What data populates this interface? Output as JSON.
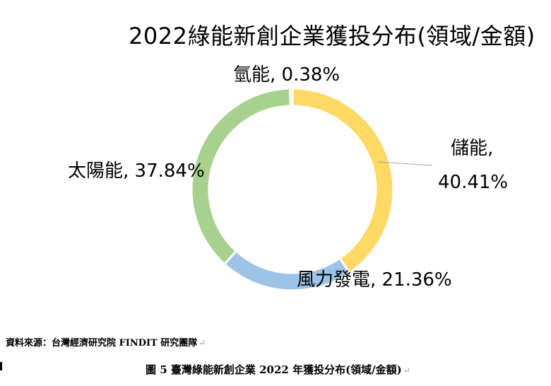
{
  "chart_data": {
    "type": "pie",
    "title": "2022綠能新創企業獲投分布(領域/金額)",
    "donut": true,
    "start_angle_deg": 0,
    "direction": "clockwise",
    "slices": [
      {
        "name": "儲能",
        "value": 40.41,
        "label": "儲能,",
        "value_label": "40.41%",
        "color": "#ffd966"
      },
      {
        "name": "風力發電",
        "value": 21.36,
        "label": "風力發電, 21.36%",
        "color": "#9dc3e6"
      },
      {
        "name": "太陽能",
        "value": 37.84,
        "label": "太陽能, 37.84%",
        "color": "#a9d18e"
      },
      {
        "name": "氫能",
        "value": 0.38,
        "label": "氫能, 0.38%",
        "color": "#f4b183"
      }
    ],
    "legend": "none"
  },
  "footer": {
    "source": "資料來源：台灣經濟研究院 FINDIT 研究團隊",
    "caption": "圖 5  臺灣綠能新創企業 2022 年獲投分布(領域/金額)",
    "return_mark": "↵"
  }
}
